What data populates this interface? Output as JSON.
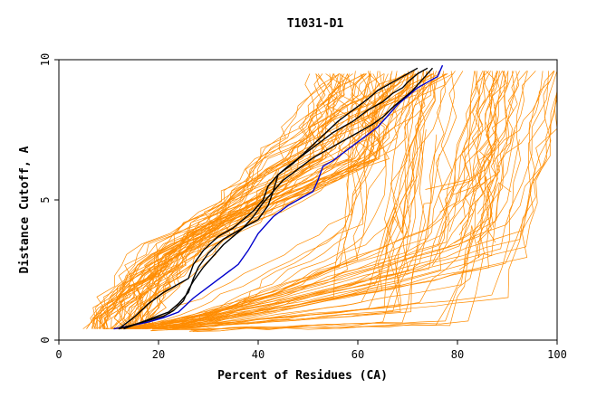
{
  "chart_data": {
    "type": "line",
    "title": "T1031-D1",
    "xlabel": "Percent of Residues (CA)",
    "ylabel": "Distance Cutoff, A",
    "xlim": [
      0,
      100
    ],
    "ylim": [
      0,
      10
    ],
    "x_ticks": [
      "0",
      "20",
      "40",
      "60",
      "80",
      "100"
    ],
    "y_ticks": [
      "0",
      "5",
      "10"
    ],
    "colors": {
      "background_models": "#ff8c00",
      "highlight_black": "#000000",
      "highlight_blue": "#0000cd"
    },
    "series": [
      {
        "color": "highlight_blue",
        "x": [
          11,
          14,
          18,
          21,
          24,
          27,
          30,
          33,
          36,
          38,
          40,
          43,
          46,
          49,
          51,
          52,
          53,
          55,
          58,
          61,
          64,
          66,
          68,
          70,
          72,
          74,
          76,
          77
        ],
        "y": [
          0.4,
          0.5,
          0.65,
          0.8,
          1.0,
          1.5,
          1.9,
          2.3,
          2.7,
          3.2,
          3.8,
          4.4,
          4.8,
          5.1,
          5.3,
          5.7,
          6.2,
          6.4,
          6.8,
          7.2,
          7.6,
          8.0,
          8.4,
          8.7,
          9.0,
          9.2,
          9.4,
          9.8
        ]
      },
      {
        "color": "highlight_black",
        "x": [
          12,
          15,
          18,
          21,
          23,
          25,
          26,
          27,
          29,
          31,
          33,
          35,
          37,
          39,
          41,
          43,
          45,
          48,
          51,
          54,
          57,
          60,
          63,
          65,
          67,
          69,
          71,
          73,
          75
        ],
        "y": [
          0.4,
          0.55,
          0.7,
          0.85,
          1.05,
          1.4,
          1.8,
          2.1,
          2.6,
          3.0,
          3.4,
          3.7,
          4.0,
          4.4,
          4.9,
          5.3,
          5.7,
          6.1,
          6.5,
          6.8,
          7.1,
          7.4,
          7.7,
          7.95,
          8.3,
          8.6,
          8.9,
          9.3,
          9.7
        ]
      },
      {
        "color": "highlight_black",
        "x": [
          13,
          16,
          19,
          22,
          24,
          26,
          27,
          28,
          30,
          33,
          36,
          38,
          40,
          42,
          43,
          44,
          46,
          49,
          52,
          55,
          57,
          59,
          62,
          65,
          67,
          69,
          70,
          72,
          74
        ],
        "y": [
          0.4,
          0.6,
          0.8,
          1.0,
          1.3,
          1.7,
          2.2,
          2.6,
          3.1,
          3.6,
          3.9,
          4.1,
          4.3,
          4.8,
          5.3,
          5.9,
          6.2,
          6.6,
          7.0,
          7.4,
          7.6,
          7.8,
          8.2,
          8.5,
          8.8,
          9.0,
          9.2,
          9.5,
          9.7
        ]
      },
      {
        "color": "highlight_black",
        "x": [
          12,
          15,
          18,
          21,
          24,
          26,
          27,
          29,
          32,
          35,
          37,
          39,
          41,
          42,
          44,
          47,
          50,
          53,
          56,
          59,
          62,
          64,
          66,
          68,
          70,
          72
        ],
        "y": [
          0.4,
          0.8,
          1.3,
          1.7,
          2.0,
          2.2,
          2.7,
          3.2,
          3.7,
          4.0,
          4.3,
          4.6,
          5.0,
          5.5,
          5.9,
          6.3,
          6.8,
          7.3,
          7.8,
          8.2,
          8.6,
          8.9,
          9.1,
          9.3,
          9.5,
          9.7
        ]
      }
    ]
  }
}
